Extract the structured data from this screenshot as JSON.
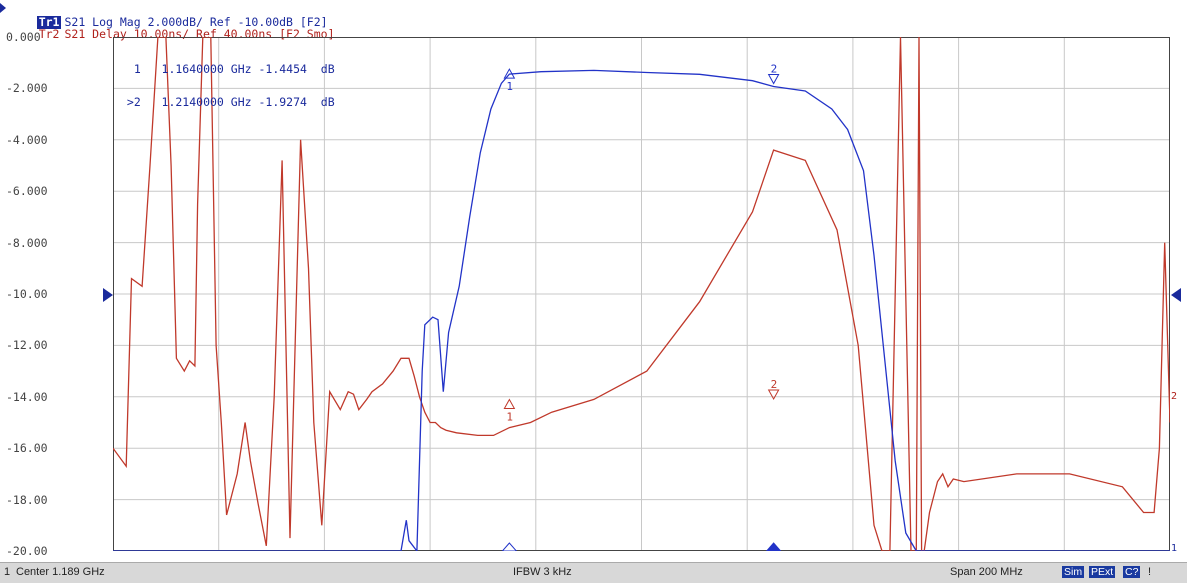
{
  "header": {
    "tr1_tag": "Tr1",
    "tr1_text": "S21 Log Mag 2.000dB/ Ref -10.00dB [F2]",
    "tr2_tag": "Tr2",
    "tr2_text": "S21 Delay 10.00ns/ Ref 40.00ns [F2 Smo]"
  },
  "markers": {
    "rows": [
      "  1   1.1640000 GHz -1.4454  dB",
      " >2   1.2140000 GHz -1.9274  dB"
    ]
  },
  "status": {
    "channel": "1",
    "center": "Center 1.189 GHz",
    "ifbw": "IFBW 3 kHz",
    "span": "Span 200 MHz",
    "badge_sim": "Sim",
    "badge_pext": "PExt",
    "badge_c": "C?",
    "badge_bang": "!"
  },
  "right_scale": {
    "tr1": "1",
    "tr2": "2"
  },
  "colors": {
    "trace1": "#2233c8",
    "trace2": "#c0392b",
    "grid": "#c8c8c8",
    "frame": "#444444"
  },
  "chart_data": {
    "type": "line",
    "x_unit": "GHz",
    "xlim": [
      1.089,
      1.289
    ],
    "ylim": [
      -20,
      0
    ],
    "y_tick_labels": [
      "0.000",
      "-2.000",
      "-4.000",
      "-6.000",
      "-8.000",
      "-10.00",
      "-12.00",
      "-14.00",
      "-16.00",
      "-18.00",
      "-20.00"
    ],
    "grid": true,
    "series": [
      {
        "name": "Tr1 S21 Log Mag",
        "x": [
          1.089,
          1.1435,
          1.1445,
          1.145,
          1.1465,
          1.1475,
          1.148,
          1.1495,
          1.1505,
          1.1515,
          1.1525,
          1.1545,
          1.1565,
          1.1585,
          1.1605,
          1.1625,
          1.164,
          1.17,
          1.18,
          1.19,
          1.2,
          1.21,
          1.214,
          1.22,
          1.225,
          1.228,
          1.231,
          1.233,
          1.235,
          1.237,
          1.239,
          1.241,
          1.244,
          1.289
        ],
        "y": [
          -20,
          -20,
          -18.8,
          -19.6,
          -20,
          -13,
          -11.2,
          -10.9,
          -11.0,
          -13.8,
          -11.5,
          -9.7,
          -7.0,
          -4.5,
          -2.8,
          -1.8,
          -1.4454,
          -1.35,
          -1.3,
          -1.38,
          -1.45,
          -1.7,
          -1.9274,
          -2.1,
          -2.8,
          -3.6,
          -5.2,
          -8.5,
          -12.5,
          -16.5,
          -19.3,
          -20,
          -20,
          -20
        ]
      },
      {
        "name": "Tr2 S21 Delay",
        "x": [
          1.089,
          1.0915,
          1.0925,
          1.0945,
          1.096,
          1.0975,
          1.099,
          1.1,
          1.101,
          1.1025,
          1.1035,
          1.1045,
          1.105,
          1.106,
          1.1075,
          1.1085,
          1.1095,
          1.1105,
          1.1125,
          1.114,
          1.115,
          1.1165,
          1.118,
          1.1195,
          1.121,
          1.1225,
          1.1245,
          1.126,
          1.127,
          1.1285,
          1.13,
          1.132,
          1.1335,
          1.1345,
          1.1355,
          1.137,
          1.138,
          1.14,
          1.142,
          1.1435,
          1.145,
          1.146,
          1.147,
          1.148,
          1.149,
          1.15,
          1.151,
          1.152,
          1.154,
          1.158,
          1.161,
          1.164,
          1.168,
          1.172,
          1.18,
          1.19,
          1.2,
          1.21,
          1.214,
          1.22,
          1.226,
          1.23,
          1.233,
          1.2345,
          1.236,
          1.238,
          1.24,
          1.241,
          1.2415,
          1.242,
          1.2425,
          1.2435,
          1.245,
          1.246,
          1.247,
          1.248,
          1.25,
          1.26,
          1.27,
          1.28,
          1.284,
          1.286,
          1.287,
          1.288,
          1.289
        ],
        "y": [
          -16.0,
          -16.7,
          -9.4,
          -9.7,
          -5,
          0,
          0,
          -5,
          -12.5,
          -13,
          -12.6,
          -12.8,
          -6.5,
          0,
          0,
          -12,
          -15,
          -18.6,
          -17,
          -15.0,
          -16.5,
          -18.2,
          -19.8,
          -14,
          -4.8,
          -19.5,
          -4.0,
          -9,
          -15,
          -19,
          -13.8,
          -14.5,
          -13.8,
          -13.9,
          -14.5,
          -14.1,
          -13.8,
          -13.5,
          -13.0,
          -12.5,
          -12.5,
          -13.2,
          -14.0,
          -14.6,
          -15.0,
          -15.0,
          -15.2,
          -15.3,
          -15.4,
          -15.5,
          -15.5,
          -15.2,
          -15.0,
          -14.6,
          -14.1,
          -13.0,
          -10.3,
          -6.8,
          -4.4,
          -4.8,
          -7.5,
          -12,
          -19,
          -20,
          -20,
          0,
          -20,
          -20,
          0,
          -20,
          -20,
          -18.5,
          -17.3,
          -17.0,
          -17.5,
          -17.2,
          -17.3,
          -17.0,
          -17.0,
          -17.5,
          -18.5,
          -18.5,
          -16,
          -8,
          -15
        ]
      }
    ],
    "marker_1": {
      "x": 1.164,
      "y": -1.4454
    },
    "marker_2": {
      "x": 1.214,
      "y": -1.9274
    }
  }
}
